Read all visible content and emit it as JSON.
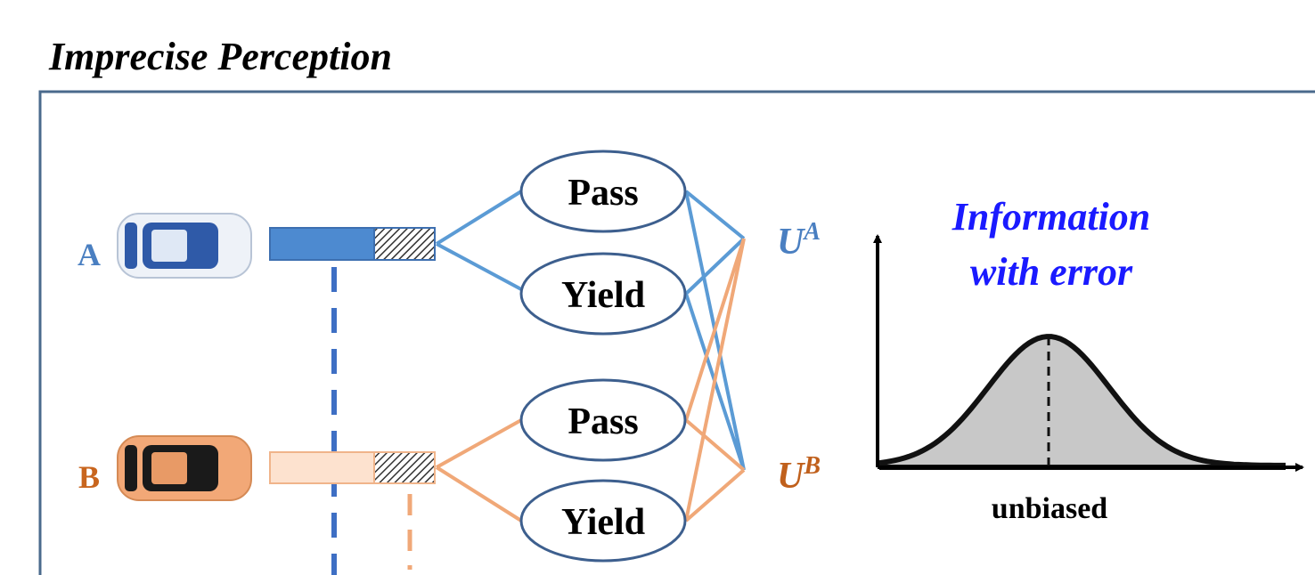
{
  "title": "Imprecise Perception",
  "vehicles": [
    {
      "label": "A"
    },
    {
      "label": "B"
    }
  ],
  "options": [
    {
      "label": "Pass"
    },
    {
      "label": "Yield"
    },
    {
      "label": "Pass"
    },
    {
      "label": "Yield"
    }
  ],
  "utilities": [
    {
      "base": "U",
      "sup": "A"
    },
    {
      "base": "U",
      "sup": "B"
    }
  ],
  "inset": {
    "title_lines": [
      "Information",
      "with error"
    ],
    "x_label": "unbiased"
  }
}
